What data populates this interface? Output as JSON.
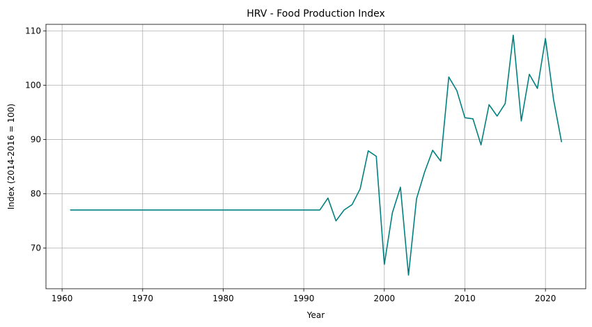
{
  "chart_data": {
    "type": "line",
    "title": "HRV - Food Production Index",
    "xlabel": "Year",
    "ylabel": "Index (2014-2016 = 100)",
    "xlim": [
      1958,
      2025
    ],
    "ylim": [
      62.5,
      111.2
    ],
    "xticks": [
      1960,
      1970,
      1980,
      1990,
      2000,
      2010,
      2020
    ],
    "yticks": [
      70,
      80,
      90,
      100,
      110
    ],
    "grid": true,
    "line_color": "#008080",
    "series": [
      {
        "x": [
          1961,
          1962,
          1963,
          1964,
          1965,
          1966,
          1967,
          1968,
          1969,
          1970,
          1971,
          1972,
          1973,
          1974,
          1975,
          1976,
          1977,
          1978,
          1979,
          1980,
          1981,
          1982,
          1983,
          1984,
          1985,
          1986,
          1987,
          1988,
          1989,
          1990,
          1991,
          1992,
          1993,
          1994,
          1995,
          1996,
          1997,
          1998,
          1999,
          2000,
          2001,
          2002,
          2003,
          2004,
          2005,
          2006,
          2007,
          2008,
          2009,
          2010,
          2011,
          2012,
          2013,
          2014,
          2015,
          2016,
          2017,
          2018,
          2019,
          2020,
          2021,
          2022
        ],
        "values": [
          77,
          77,
          77,
          77,
          77,
          77,
          77,
          77,
          77,
          77,
          77,
          77,
          77,
          77,
          77,
          77,
          77,
          77,
          77,
          77,
          77,
          77,
          77,
          77,
          77,
          77,
          77,
          77,
          77,
          77,
          77,
          77,
          79.2,
          75,
          77,
          78,
          80.9,
          87.9,
          86.9,
          67,
          76.5,
          81.2,
          65,
          79.1,
          84,
          88,
          86,
          101.5,
          99,
          94,
          93.8,
          89,
          96.4,
          94.3,
          96.6,
          109.2,
          93.4,
          102,
          99.4,
          108.6,
          97.4,
          89.5
        ]
      }
    ]
  }
}
